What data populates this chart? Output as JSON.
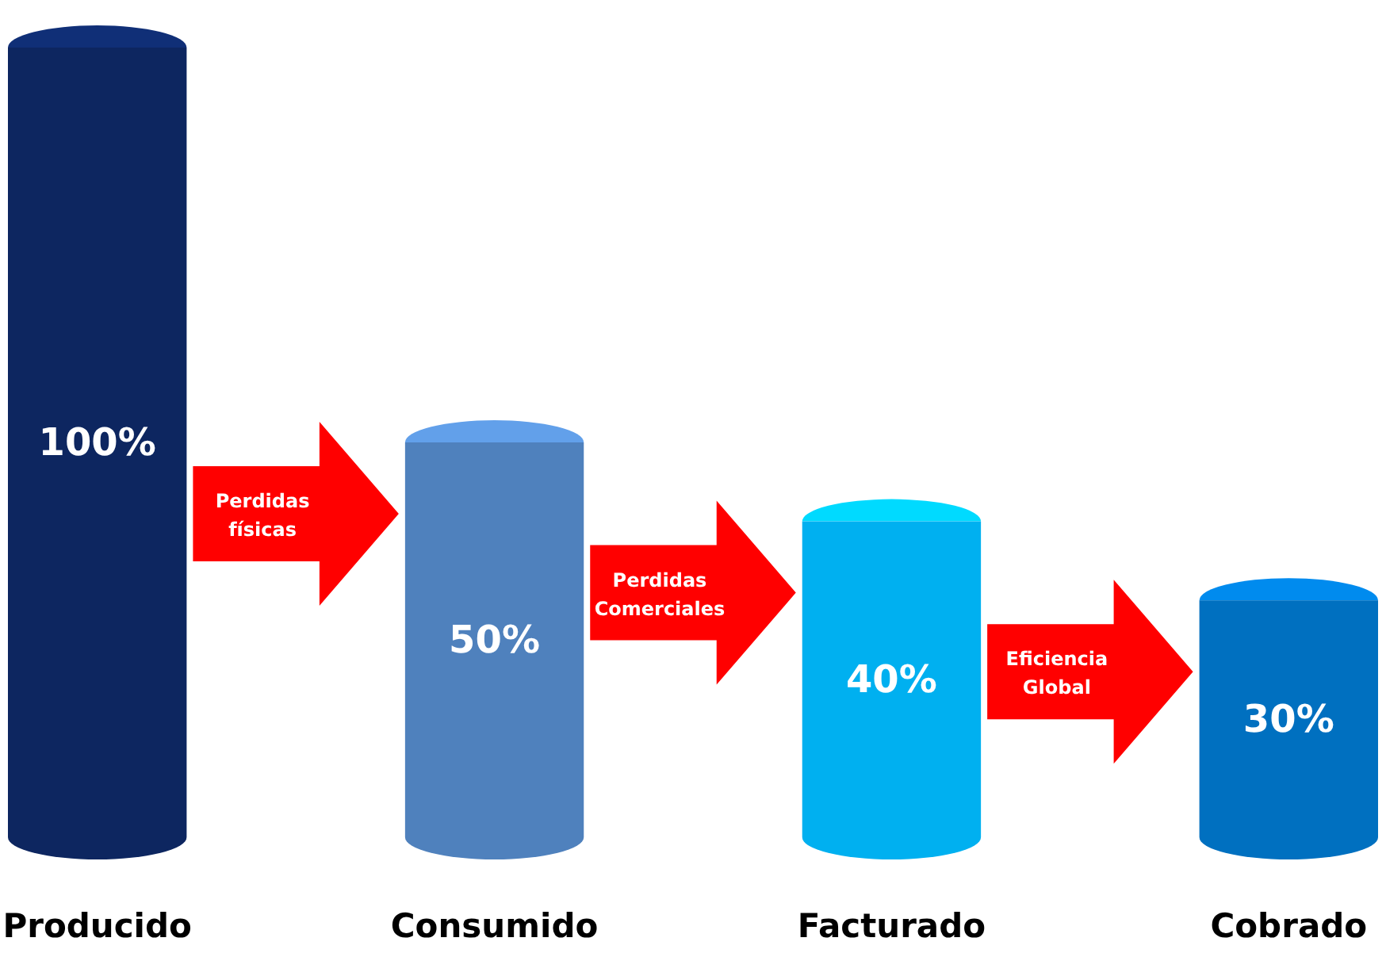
{
  "chart_data": {
    "type": "bar",
    "categories": [
      "Producido",
      "Consumido",
      "Facturado",
      "Cobrado"
    ],
    "values": [
      100,
      50,
      40,
      30
    ],
    "colors": [
      "#0d2660",
      "#4f81bd",
      "#00b0f0",
      "#0070c0"
    ],
    "value_labels": [
      "100%",
      "50%",
      "40%",
      "30%"
    ],
    "annotations": [
      "Perdidas físicas",
      "Perdidas Comerciales",
      "Eficiencia Global"
    ]
  }
}
